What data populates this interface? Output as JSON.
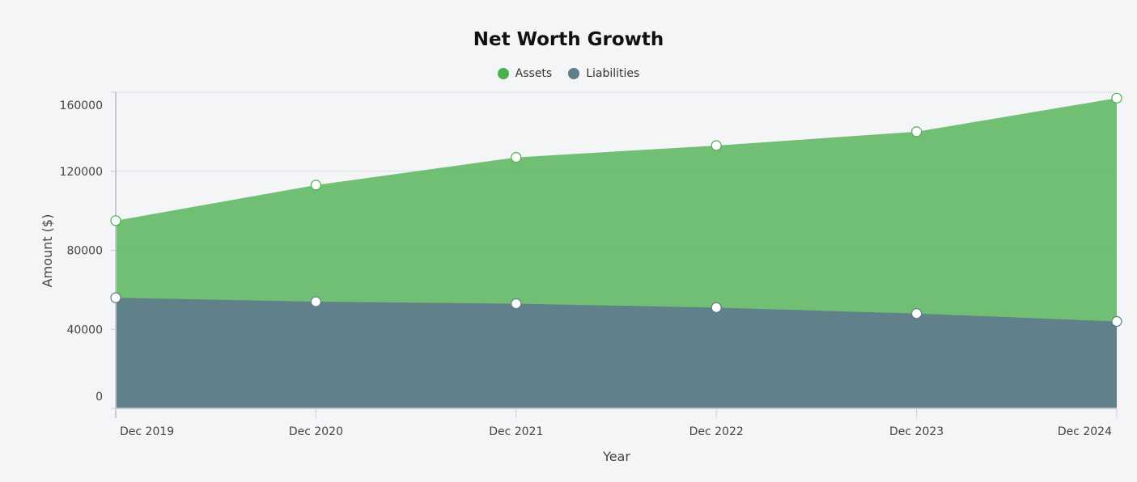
{
  "chart_data": {
    "type": "area",
    "title": "Net Worth Growth",
    "xlabel": "Year",
    "ylabel": "Amount ($)",
    "categories": [
      "Dec 2019",
      "Dec 2020",
      "Dec 2021",
      "Dec 2022",
      "Dec 2023",
      "Dec 2024"
    ],
    "yticks": [
      "0",
      "40000",
      "80000",
      "120000",
      "160000"
    ],
    "ylim": [
      0,
      160000
    ],
    "grid": true,
    "legend_position": "top",
    "series": [
      {
        "name": "Assets",
        "color": "#4caf50",
        "values": [
          95000,
          113000,
          127000,
          133000,
          140000,
          157000
        ]
      },
      {
        "name": "Liabilities",
        "color": "#607d8b",
        "values": [
          56000,
          54000,
          53000,
          51000,
          48000,
          44000
        ]
      }
    ]
  }
}
